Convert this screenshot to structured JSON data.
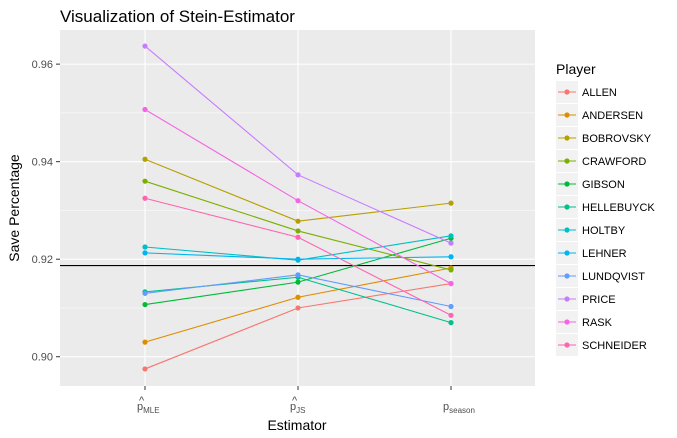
{
  "chart_data": {
    "type": "line",
    "title": "Visualization of Stein-Estimator",
    "xlabel": "Estimator",
    "ylabel": "Save Percentage",
    "categories": [
      {
        "base": "p",
        "hat": "^",
        "sub": "MLE"
      },
      {
        "base": "p",
        "hat": "^",
        "sub": "JS"
      },
      {
        "base": "p",
        "hat": "",
        "sub": "season"
      }
    ],
    "ylim": [
      0.894,
      0.967
    ],
    "yticks": [
      0.9,
      0.92,
      0.94,
      0.96
    ],
    "ytick_labels": [
      "0.90",
      "0.92",
      "0.94",
      "0.96"
    ],
    "hline": 0.9187,
    "grid": true,
    "legend_title": "Player",
    "legend_position": "right",
    "series": [
      {
        "name": "ALLEN",
        "color": "#F8766D",
        "values": [
          0.8975,
          0.91,
          0.915
        ]
      },
      {
        "name": "ANDERSEN",
        "color": "#DE8C00",
        "values": [
          0.903,
          0.9122,
          0.9182
        ]
      },
      {
        "name": "BOBROVSKY",
        "color": "#B79F00",
        "values": [
          0.9405,
          0.9278,
          0.9315
        ]
      },
      {
        "name": "CRAWFORD",
        "color": "#7CAE00",
        "values": [
          0.936,
          0.9258,
          0.9178
        ]
      },
      {
        "name": "GIBSON",
        "color": "#00BA38",
        "values": [
          0.9107,
          0.9153,
          0.9243
        ]
      },
      {
        "name": "HELLEBUYCK",
        "color": "#00C08B",
        "values": [
          0.9133,
          0.9163,
          0.907
        ]
      },
      {
        "name": "HOLTBY",
        "color": "#00BFC4",
        "values": [
          0.9225,
          0.9198,
          0.9248
        ]
      },
      {
        "name": "LEHNER",
        "color": "#00B4F0",
        "values": [
          0.9213,
          0.92,
          0.9205
        ]
      },
      {
        "name": "LUNDQVIST",
        "color": "#619CFF",
        "values": [
          0.913,
          0.9168,
          0.9103
        ]
      },
      {
        "name": "PRICE",
        "color": "#C77CFF",
        "values": [
          0.9637,
          0.9373,
          0.9233
        ]
      },
      {
        "name": "RASK",
        "color": "#F564E3",
        "values": [
          0.9507,
          0.932,
          0.915
        ]
      },
      {
        "name": "SCHNEIDER",
        "color": "#FF64B0",
        "values": [
          0.9325,
          0.9245,
          0.9085
        ]
      }
    ]
  }
}
